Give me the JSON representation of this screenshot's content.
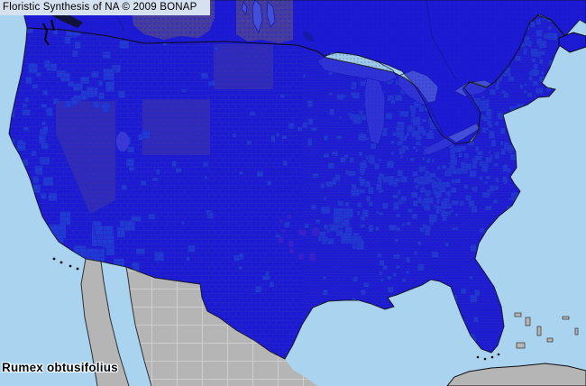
{
  "header": {
    "title": "Floristic Synthesis of NA © 2009 BONAP"
  },
  "species": {
    "label": "Rumex obtusifolius"
  },
  "palette": {
    "ocean": "#a9d3ef",
    "lake": "#9ec9e9",
    "present_blue": "#1c1ad2",
    "county_cyan": "#3df2f2",
    "absent_olive": "#b3901d",
    "rare_magenta": "#ea3cc8",
    "outside_gray": "#b5b5b5",
    "county_line": "#6e7e76",
    "state_line": "#3a3f48",
    "coast_line": "#0b0b10",
    "canada_dot": "#0d0d8c",
    "lake_dot": "#33549c",
    "mexico_line": "#dcdcdc",
    "banner_bg": "#d5e1ef",
    "banner_text": "#000000",
    "label_text": "#000a14",
    "label_halo": "#ffffff",
    "salt_lake": "#e3eaee",
    "island_dark": "#10123a"
  },
  "map_areas": [
    {
      "name": "canada",
      "fill_key": "present_blue"
    },
    {
      "name": "united-states",
      "fill_key": "present_blue"
    },
    {
      "name": "nevada",
      "fill_key": "absent_olive"
    },
    {
      "name": "wyoming",
      "fill_key": "absent_olive"
    },
    {
      "name": "north-dakota",
      "fill_key": "absent_olive"
    },
    {
      "name": "saskatchewan",
      "fill_key": "absent_olive"
    },
    {
      "name": "manitoba",
      "fill_key": "absent_olive"
    },
    {
      "name": "oklahoma-cluster",
      "fill_key": "rare_magenta"
    },
    {
      "name": "mexico",
      "fill_key": "outside_gray"
    },
    {
      "name": "cuba",
      "fill_key": "outside_gray"
    },
    {
      "name": "bahamas",
      "fill_key": "outside_gray"
    },
    {
      "name": "great-lakes",
      "fill_key": "lake"
    },
    {
      "name": "ocean",
      "fill_key": "ocean"
    }
  ]
}
